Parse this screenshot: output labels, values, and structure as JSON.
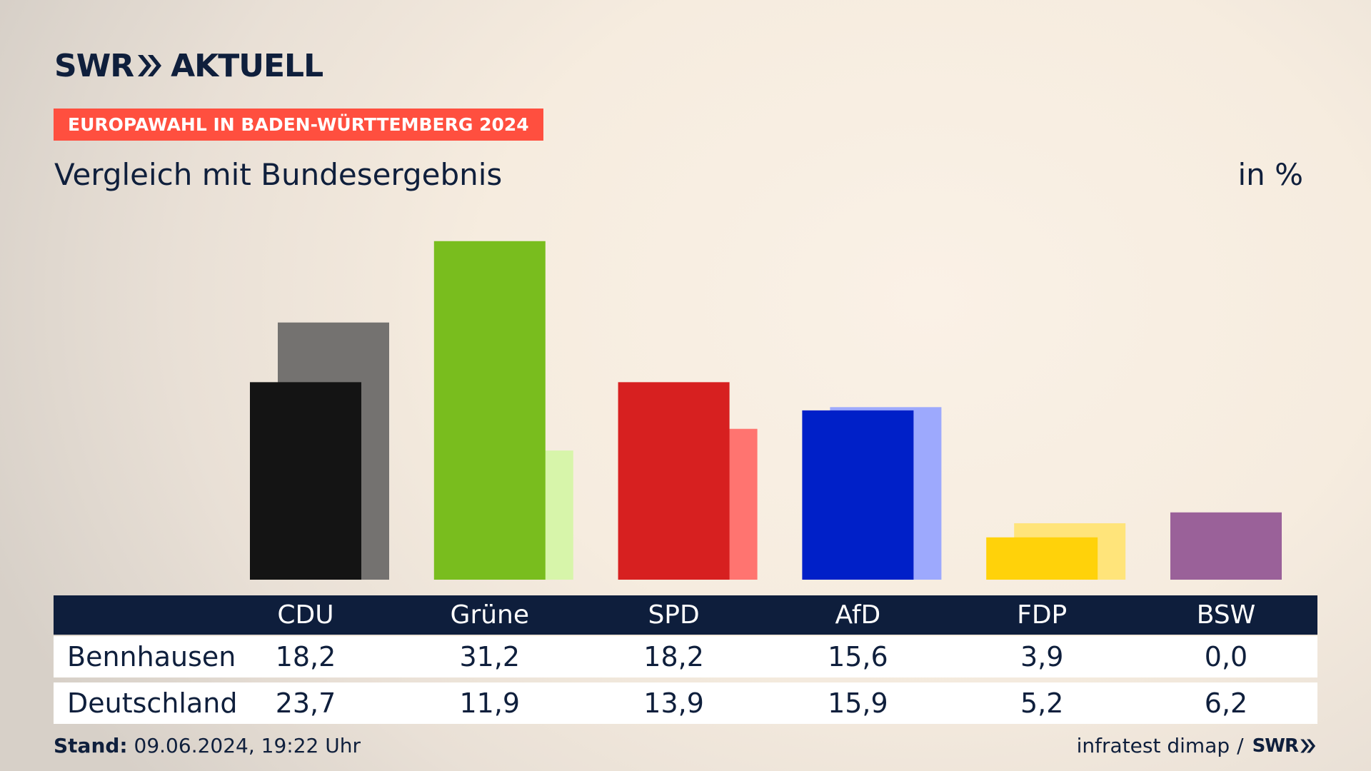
{
  "brand": {
    "logo_word1": "SWR",
    "logo_word2": "AKTUELL"
  },
  "topline": "EUROPAWAHL IN BADEN-WÜRTTEMBERG 2024",
  "headline": "Vergleich mit Bundesergebnis",
  "unit": "in %",
  "footer": {
    "stand_label": "Stand:",
    "stand_value": "09.06.2024, 19:22 Uhr",
    "source": "infratest dimap",
    "separator": "/",
    "source_logo": "SWR"
  },
  "chart_data": {
    "type": "bar",
    "categories": [
      "CDU",
      "Grüne",
      "SPD",
      "AfD",
      "FDP",
      "BSW"
    ],
    "series": [
      {
        "name": "Bennhausen",
        "values": [
          18.2,
          31.2,
          18.2,
          15.6,
          3.9,
          0.0
        ],
        "colors": [
          "#141414",
          "#79bd1e",
          "#d72020",
          "#0020c8",
          "#ffd20a",
          "#9a6199"
        ]
      },
      {
        "name": "Deutschland",
        "values": [
          23.7,
          11.9,
          13.9,
          15.9,
          5.2,
          6.2
        ],
        "colors": [
          "#747270",
          "#d7f5aa",
          "#ff7470",
          "#9da9fd",
          "#ffe47a",
          "#9a6199"
        ]
      }
    ],
    "table": {
      "rows": [
        {
          "label": "Bennhausen",
          "values": [
            "18,2",
            "31,2",
            "18,2",
            "15,6",
            "3,9",
            "0,0"
          ]
        },
        {
          "label": "Deutschland",
          "values": [
            "23,7",
            "11,9",
            "13,9",
            "15,9",
            "5,2",
            "6,2"
          ]
        }
      ]
    }
  },
  "colors": {
    "accent": "#ff4f3f",
    "navy": "#0e1e3c"
  }
}
